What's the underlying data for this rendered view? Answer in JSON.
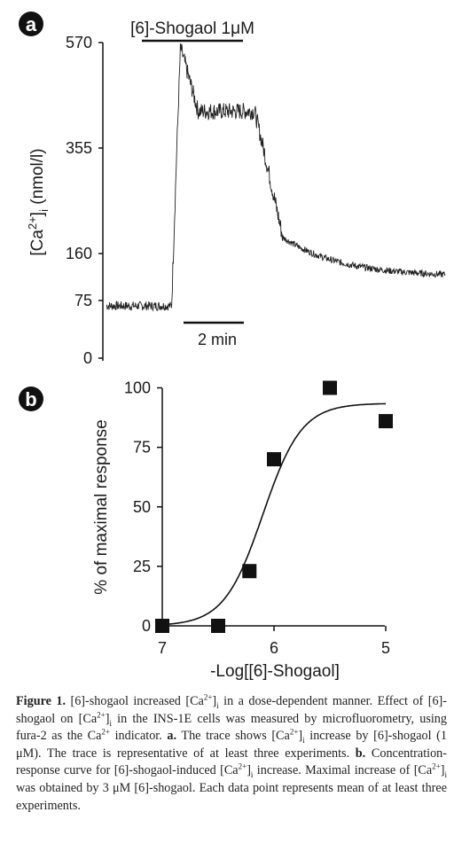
{
  "chart_data": [
    {
      "panel": "a",
      "type": "line",
      "treatment_label": "[6]-Shogaol 1μM",
      "ylabel_parts": {
        "pre": "[Ca",
        "sup": "2+",
        "mid": "]",
        "sub": "i",
        "post": " (nmol/l)"
      },
      "yticks": [
        0,
        75,
        160,
        355,
        570
      ],
      "scale_bar_label": "2 min",
      "trace": {
        "duration_min": 9.6,
        "baseline": 68,
        "onset_min": 1.85,
        "peak_min": 2.1,
        "peak": 560,
        "plateau_start_min": 2.6,
        "plateau": 430,
        "wash_start_min": 4.2,
        "wash_end_min": 5.0,
        "post_wash": 190,
        "final": 118,
        "noise": 22
      }
    },
    {
      "panel": "b",
      "type": "scatter",
      "xlabel": "-Log[[6]-Shogaol]",
      "ylabel": "% of maximal response",
      "xticks": [
        7,
        6,
        5
      ],
      "yticks": [
        0,
        25,
        50,
        75,
        100
      ],
      "points": [
        {
          "x": 7.0,
          "y": 0
        },
        {
          "x": 6.5,
          "y": 0
        },
        {
          "x": 6.22,
          "y": 23
        },
        {
          "x": 6.0,
          "y": 70
        },
        {
          "x": 5.5,
          "y": 100
        },
        {
          "x": 5.0,
          "y": 86
        }
      ],
      "fit": {
        "bottom": 0,
        "top": 93.5,
        "logEC50": 6.1,
        "hill": 2.5
      }
    }
  ],
  "caption": {
    "figure_label": "Figure 1.",
    "html": "[6]-shogaol increased [Ca<sup>2+</sup>]<sub>i</sub> in a dose-dependent manner. Effect of [6]-shogaol on [Ca<sup>2+</sup>]<sub>i</sub> in the INS-1E cells was measured by microfluorometry, using fura-2 as the Ca<sup>2+</sup> indicator. <b>a.</b> The trace shows [Ca<sup>2+</sup>]<sub>i</sub> increase by [6]-shogaol (1 μM). The trace is representative of at least three experiments. <b>b.</b> Concentration-response curve for [6]-shogaol-induced [Ca<sup>2+</sup>]<sub>i</sub> increase. Maximal increase of [Ca<sup>2+</sup>]<sub>i</sub> was obtained by 3 μM [6]-shogaol. Each data point represents mean of at least three experiments."
  },
  "panel_labels": [
    "a",
    "b"
  ]
}
